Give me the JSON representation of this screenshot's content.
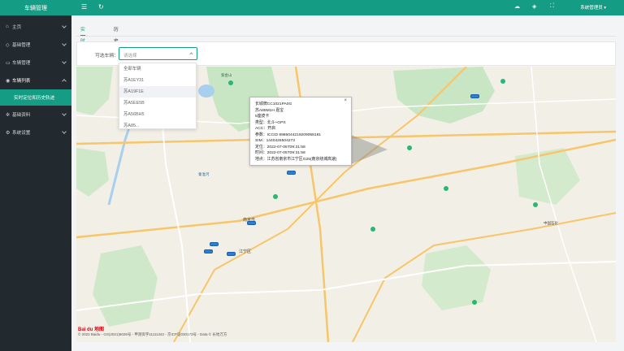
{
  "app": {
    "title": "车辆管理"
  },
  "sidebar": {
    "items": [
      {
        "label": "主页",
        "icon": "home-icon"
      },
      {
        "label": "基础管理",
        "icon": "tag-icon"
      },
      {
        "label": "车辆管理",
        "icon": "car-icon"
      },
      {
        "label": "车辆列表",
        "icon": "location-icon"
      },
      {
        "label": "基础资料",
        "icon": "gear-icon"
      },
      {
        "label": "系统设置",
        "icon": "settings-icon"
      }
    ],
    "active_sub": "实时定位和历史轨迹"
  },
  "topbar": {
    "user_label": "系统管理员"
  },
  "tabs": [
    {
      "label": "实时位置"
    },
    {
      "label": "历史轨迹"
    }
  ],
  "filter": {
    "label": "可选车辆：",
    "select_placeholder": "请选择"
  },
  "dropdown": {
    "options": [
      "全部车辆",
      "苏A1EY31",
      "苏A19F1E",
      "苏A5EE5B",
      "苏A56BH5",
      "苏A85..."
    ]
  },
  "popup": {
    "lines": [
      "长城牌CC1021PA0G",
      "苏A88M1H    嘉宝",
      "5座皮卡",
      "类型：北斗+GPS",
      "ACC：开启",
      "参数：ICCID 8986044219209058181",
      "SIM：1440426504273",
      "定位：2022-07-05T09:31:58",
      "时间：2022-07-05T09:31:58",
      "地点：江苏省南京市江宁区G25(南京绕城高速)"
    ]
  },
  "map": {
    "labels": [
      {
        "text": "南京市",
        "kind": "city"
      },
      {
        "text": "江宁区",
        "kind": "district"
      },
      {
        "text": "中国石化",
        "kind": "poi"
      },
      {
        "text": "紫金山",
        "kind": "poi"
      },
      {
        "text": "秦淮河",
        "kind": "poi"
      }
    ],
    "copyright": "© 2022 Baidu - GS(2021)6026号 - 甲测资字11111342 - 京ICP证030173号 - Data © 长地万方",
    "logo": "Bai du 地图"
  }
}
